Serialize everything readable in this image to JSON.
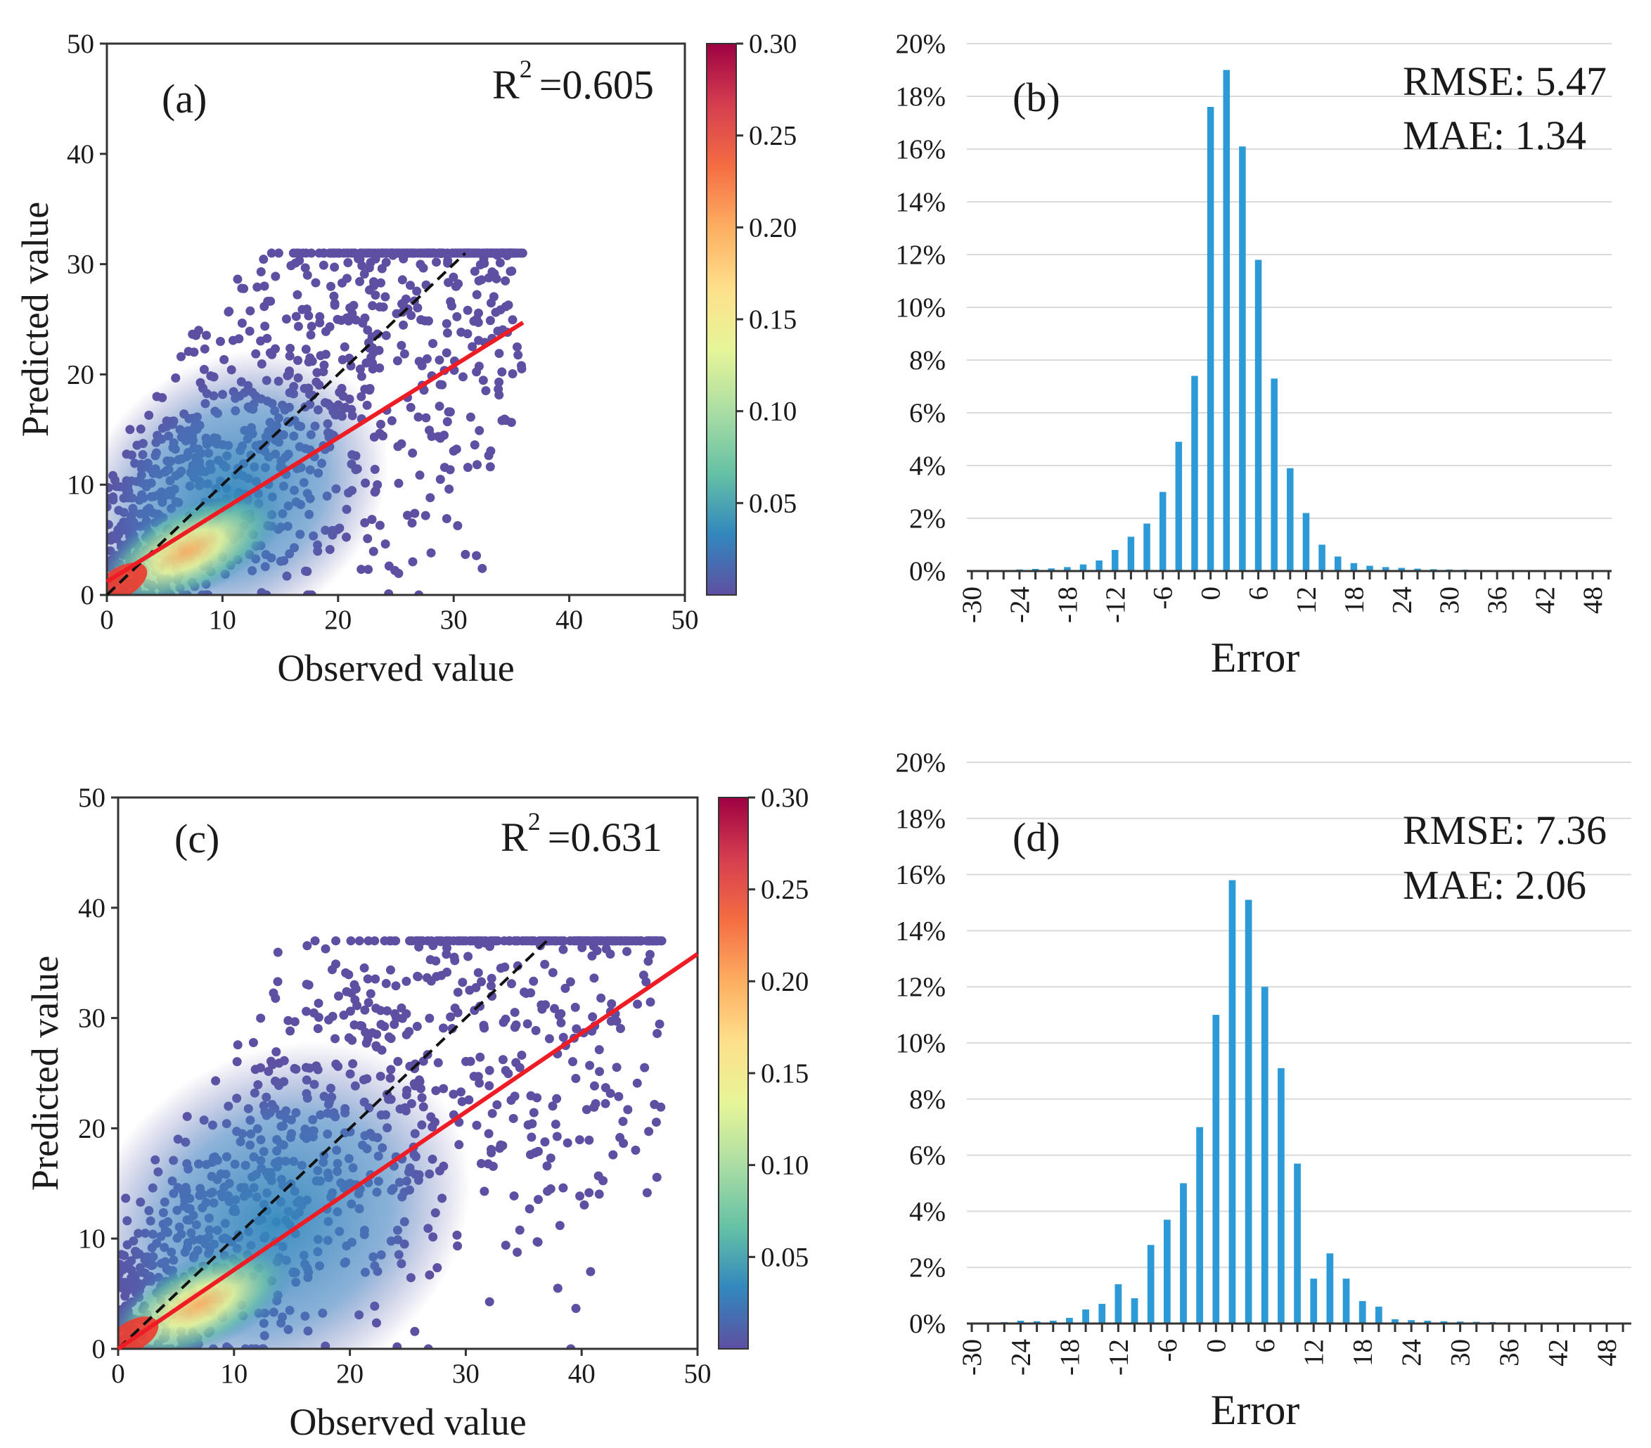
{
  "colors": {
    "bar": "#2b9ad6",
    "fit_line": "#ee1c25",
    "identity_line": "#111111",
    "scatter_sparse": "#5e4fa2",
    "colormap": [
      "#5e4fa2",
      "#3288bd",
      "#66c2a5",
      "#abdda4",
      "#e6f598",
      "#fee08b",
      "#fdae61",
      "#f46d43",
      "#d53e4f",
      "#9e0142"
    ]
  },
  "chart_data": [
    {
      "id": "a",
      "type": "scatter",
      "panel_label": "(a)",
      "r2_label": "R",
      "r2_exp": "2",
      "r2_value": "=0.605",
      "xlabel": "Observed value",
      "ylabel": "Predicted value",
      "xlim": [
        0,
        50
      ],
      "ylim": [
        0,
        50
      ],
      "xticks": [
        "0",
        "10",
        "20",
        "30",
        "40",
        "50"
      ],
      "yticks": [
        "0",
        "10",
        "20",
        "30",
        "40",
        "50"
      ],
      "identity_line": {
        "x": [
          0,
          31
        ],
        "y": [
          0,
          31
        ]
      },
      "fit_line": {
        "x": [
          0,
          36
        ],
        "y": [
          1.2,
          24.7
        ]
      },
      "colorbar": {
        "min": 0,
        "max": 0.3,
        "ticks": [
          "0.05",
          "0.10",
          "0.15",
          "0.20",
          "0.25",
          "0.30"
        ]
      },
      "point_extent": {
        "max_x": 36,
        "max_y": 31
      }
    },
    {
      "id": "b",
      "type": "bar",
      "panel_label": "(b)",
      "stats": [
        "RMSE: 5.47",
        "MAE: 1.34"
      ],
      "xlabel": "Error",
      "ylabel": "",
      "ylim": [
        0,
        20
      ],
      "yticks": [
        "0%",
        "2%",
        "4%",
        "6%",
        "8%",
        "10%",
        "12%",
        "14%",
        "16%",
        "18%",
        "20%"
      ],
      "xticks": [
        "-30",
        "-24",
        "-18",
        "-12",
        "-6",
        "0",
        "6",
        "12",
        "18",
        "24",
        "30",
        "36",
        "42",
        "48"
      ],
      "categories": [
        -30,
        -28,
        -26,
        -24,
        -22,
        -20,
        -18,
        -16,
        -14,
        -12,
        -10,
        -8,
        -6,
        -4,
        -2,
        0,
        2,
        4,
        6,
        8,
        10,
        12,
        14,
        16,
        18,
        20,
        22,
        24,
        26,
        28,
        30,
        32,
        34,
        36,
        38,
        40,
        42,
        44,
        46,
        48,
        50
      ],
      "values": [
        0.02,
        0.03,
        0.04,
        0.06,
        0.08,
        0.1,
        0.15,
        0.25,
        0.4,
        0.8,
        1.3,
        1.8,
        3.0,
        4.9,
        7.4,
        17.6,
        19.0,
        16.1,
        11.8,
        7.3,
        3.9,
        2.2,
        1.0,
        0.55,
        0.3,
        0.2,
        0.15,
        0.12,
        0.09,
        0.07,
        0.06,
        0.05,
        0.04,
        0.03,
        0.03,
        0.02,
        0.02,
        0.02,
        0.01,
        0.01,
        0.01
      ]
    },
    {
      "id": "c",
      "type": "scatter",
      "panel_label": "(c)",
      "r2_label": "R",
      "r2_exp": "2",
      "r2_value": "=0.631",
      "xlabel": "Observed value",
      "ylabel": "Predicted value",
      "xlim": [
        0,
        50
      ],
      "ylim": [
        0,
        50
      ],
      "xticks": [
        "0",
        "10",
        "20",
        "30",
        "40",
        "50"
      ],
      "yticks": [
        "0",
        "10",
        "20",
        "30",
        "40",
        "50"
      ],
      "identity_line": {
        "x": [
          0,
          37
        ],
        "y": [
          0,
          37
        ]
      },
      "fit_line": {
        "x": [
          0,
          50
        ],
        "y": [
          0,
          35.8
        ]
      },
      "colorbar": {
        "min": 0,
        "max": 0.3,
        "ticks": [
          "0.05",
          "0.10",
          "0.15",
          "0.20",
          "0.25",
          "0.30"
        ]
      },
      "point_extent": {
        "max_x": 47,
        "max_y": 37
      }
    },
    {
      "id": "d",
      "type": "bar",
      "panel_label": "(d)",
      "stats": [
        "RMSE: 7.36",
        "MAE: 2.06"
      ],
      "xlabel": "Error",
      "ylabel": "",
      "ylim": [
        0,
        20
      ],
      "yticks": [
        "0%",
        "2%",
        "4%",
        "6%",
        "8%",
        "10%",
        "12%",
        "14%",
        "16%",
        "18%",
        "20%"
      ],
      "xticks": [
        "-30",
        "-24",
        "-18",
        "-12",
        "-6",
        "0",
        "6",
        "12",
        "18",
        "24",
        "30",
        "36",
        "42",
        "48"
      ],
      "categories": [
        -30,
        -28,
        -26,
        -24,
        -22,
        -20,
        -18,
        -16,
        -14,
        -12,
        -10,
        -8,
        -6,
        -4,
        -2,
        0,
        2,
        4,
        6,
        8,
        10,
        12,
        14,
        16,
        18,
        20,
        22,
        24,
        26,
        28,
        30,
        32,
        34,
        36,
        38,
        40,
        42,
        44,
        46,
        48,
        50
      ],
      "values": [
        0.02,
        0.03,
        0.05,
        0.1,
        0.08,
        0.1,
        0.2,
        0.5,
        0.7,
        1.4,
        0.9,
        2.8,
        3.7,
        5.0,
        7.0,
        11.0,
        15.8,
        15.1,
        12.0,
        9.1,
        5.7,
        1.6,
        2.5,
        1.6,
        0.8,
        0.6,
        0.15,
        0.12,
        0.1,
        0.08,
        0.07,
        0.06,
        0.05,
        0.04,
        0.03,
        0.03,
        0.02,
        0.02,
        0.02,
        0.01,
        0.01
      ]
    }
  ]
}
